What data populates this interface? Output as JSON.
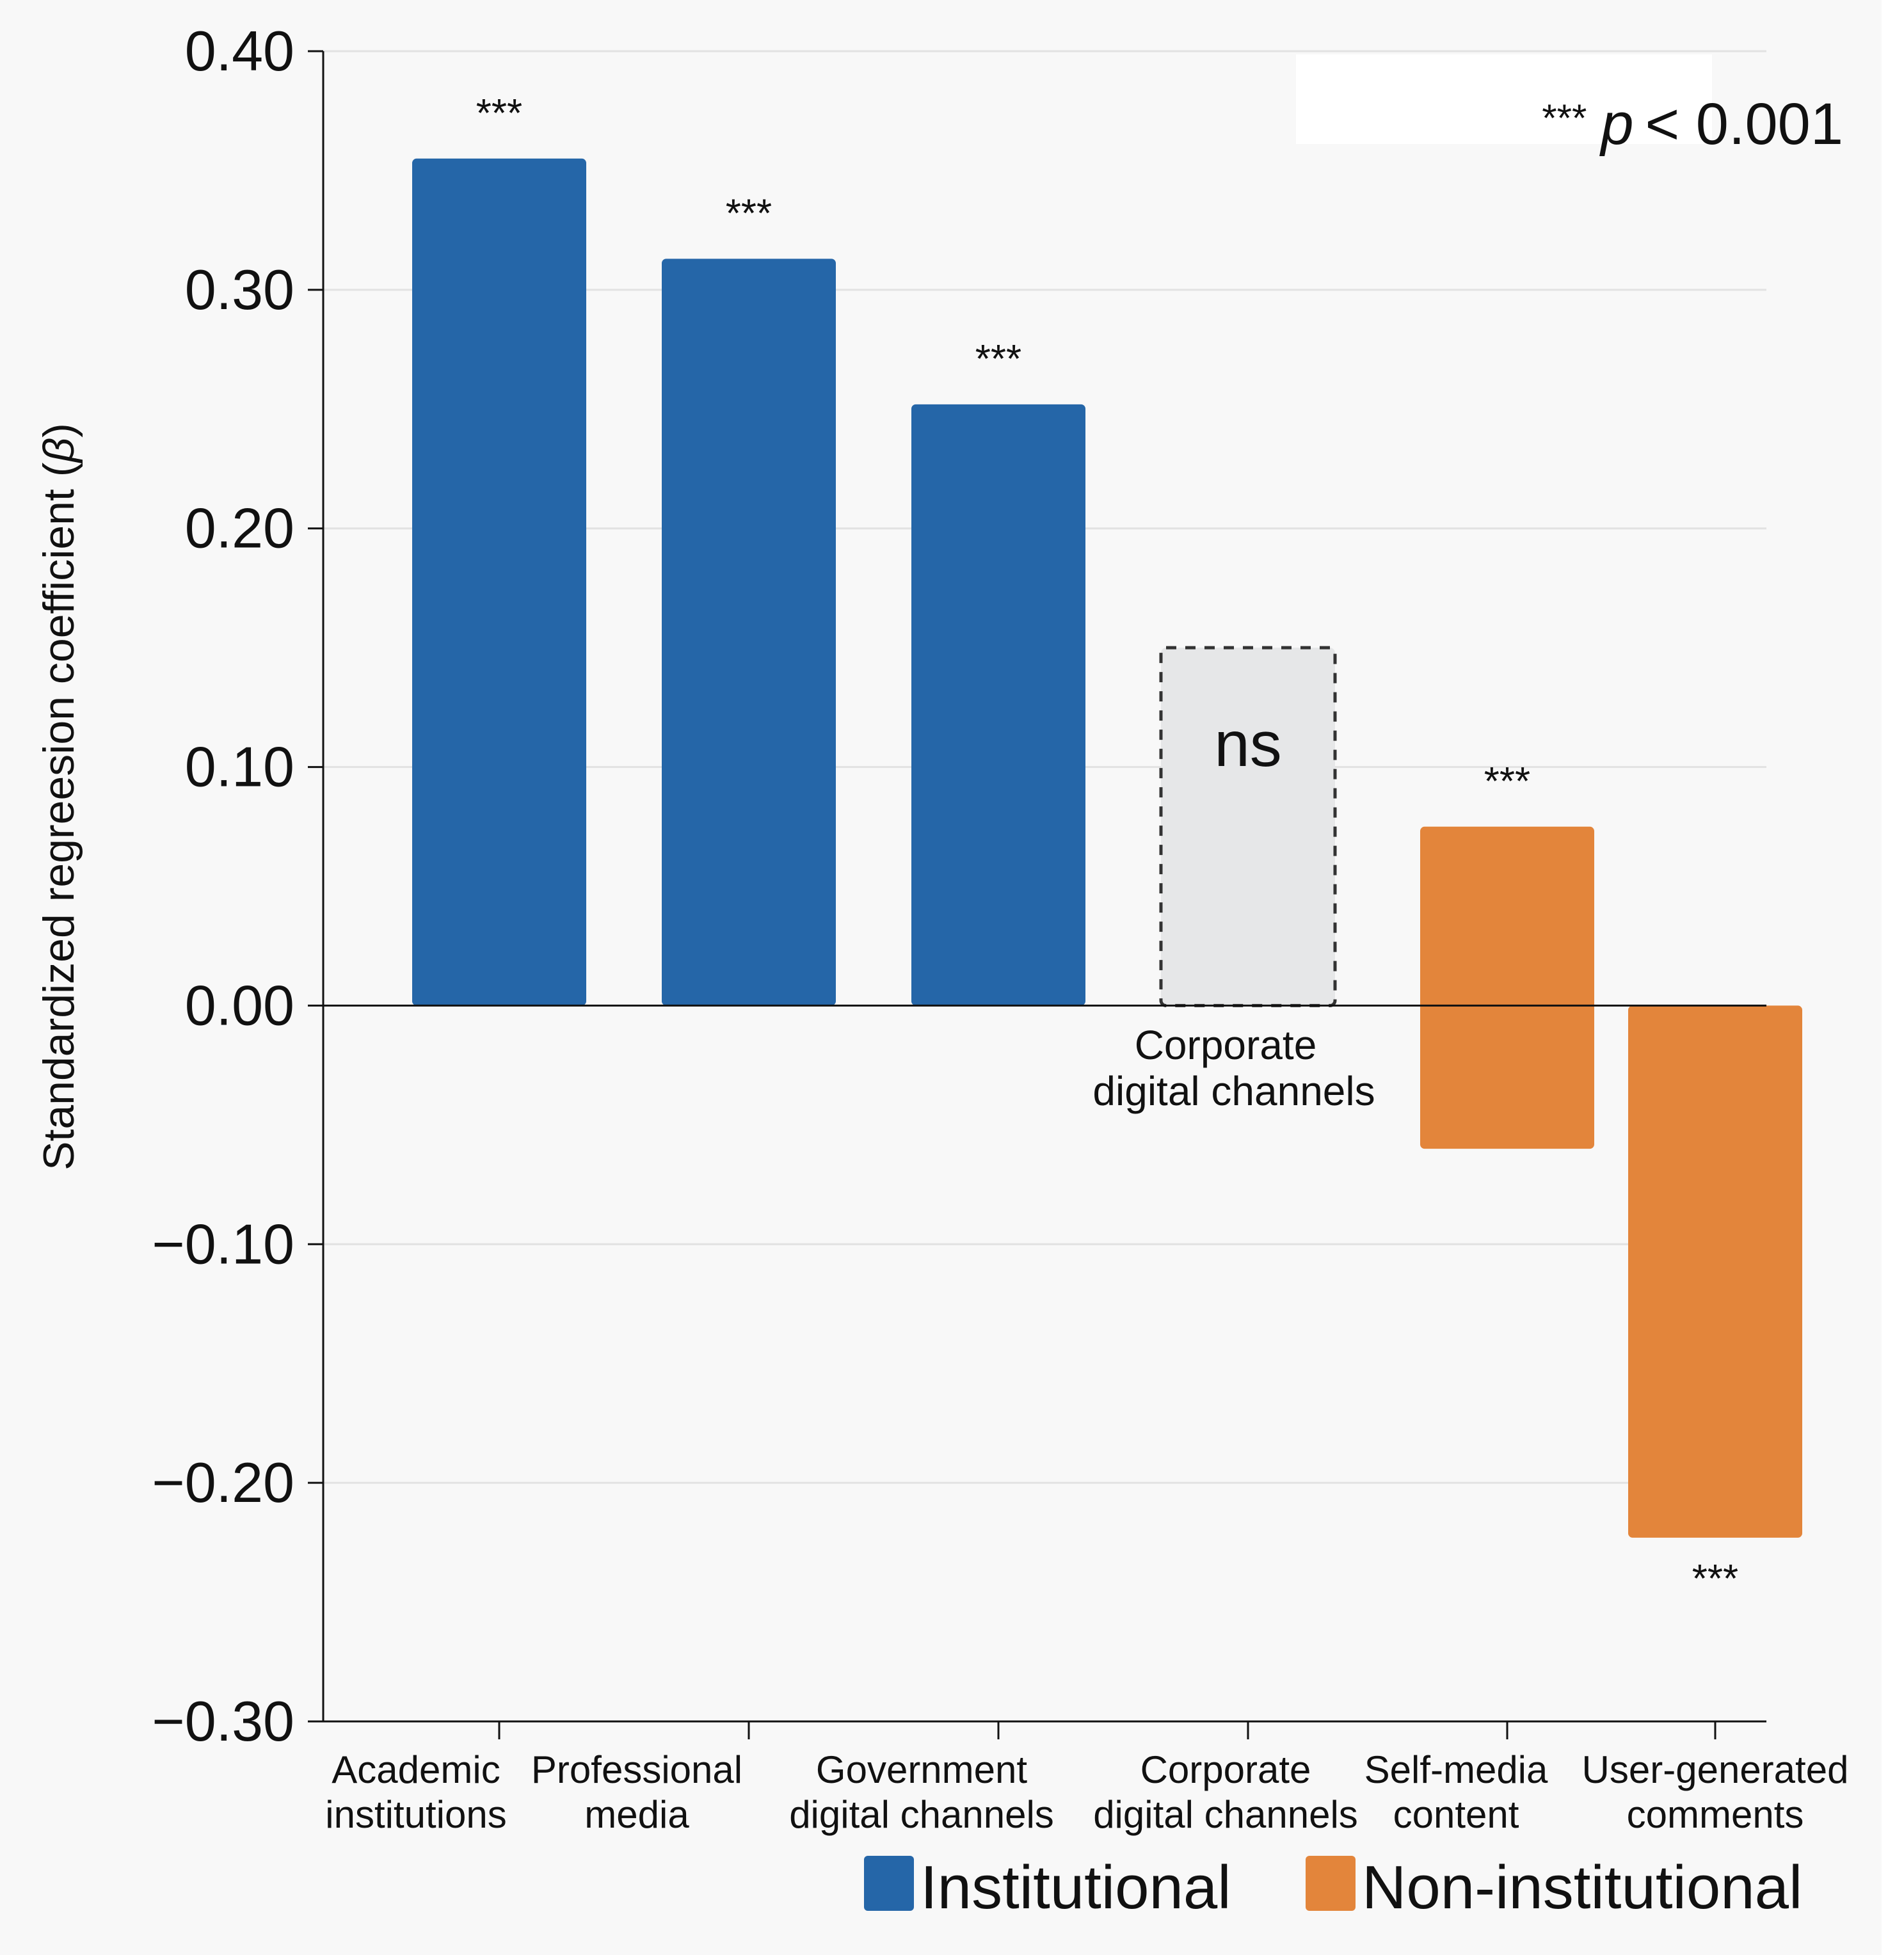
{
  "chart_data": {
    "type": "bar",
    "ylabel": "Standardized regreesion coefficient (",
    "ylabel_symbol": "β",
    "ylabel_close": ")",
    "ylim": [
      -0.3,
      0.4
    ],
    "yticks": [
      0.4,
      0.3,
      0.2,
      0.1,
      0.0,
      -0.1,
      -0.2,
      -0.3
    ],
    "ytick_labels": [
      "0.40",
      "0.30",
      "0.20",
      "0.10",
      "0.00",
      "−0.10",
      "−0.20",
      "−0.30"
    ],
    "grid": true,
    "categories": [
      {
        "line1": "Academic",
        "line2": "institutions"
      },
      {
        "line1": "Professional",
        "line2": "media"
      },
      {
        "line1": "Government",
        "line2": "digital channels"
      },
      {
        "line1": "Corporate",
        "line2": "digital channels"
      },
      {
        "line1": "Self-media",
        "line2": "content"
      },
      {
        "line1": "User-generated",
        "line2": "comments"
      }
    ],
    "bars": [
      {
        "top": 0.355,
        "bottom": 0.0,
        "group": "Institutional",
        "sig": "***",
        "style": "solid"
      },
      {
        "top": 0.313,
        "bottom": 0.0,
        "group": "Institutional",
        "sig": "***",
        "style": "solid"
      },
      {
        "top": 0.252,
        "bottom": 0.0,
        "group": "Institutional",
        "sig": "***",
        "style": "solid"
      },
      {
        "top": 0.15,
        "bottom": 0.0,
        "group": "Institutional",
        "sig": "ns",
        "style": "dashed"
      },
      {
        "top": 0.075,
        "bottom": -0.06,
        "group": "Non-institutional",
        "sig": "***",
        "style": "solid"
      },
      {
        "top": 0.0,
        "bottom": -0.223,
        "group": "Non-institutional",
        "sig": "***",
        "style": "solid"
      }
    ],
    "zero_annotation": {
      "line1": "Corporate",
      "line2": "digital channels"
    },
    "significance_note": {
      "stars": "***",
      "p": "p",
      "rest": "< 0.001"
    },
    "legend": [
      {
        "label": "Institutional",
        "color": "#2566A8"
      },
      {
        "label": "Non-institutional",
        "color": "#E3853B"
      }
    ],
    "legend_position": "bottom-right",
    "colors": {
      "institutional": "#2566A8",
      "non_institutional": "#E3853B",
      "ns_fill": "#E6E7E8",
      "background": "#F8F8F8",
      "grid": "#E2E2E2"
    }
  }
}
